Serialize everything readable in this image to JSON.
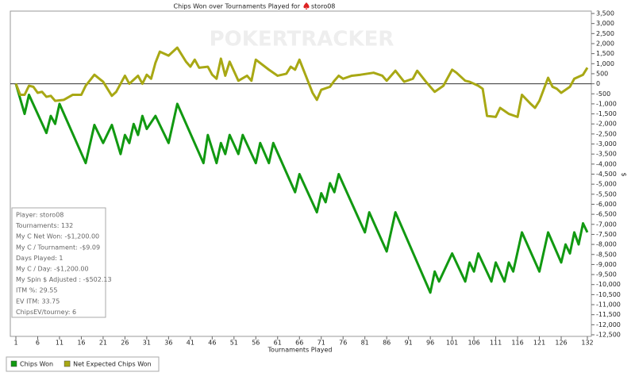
{
  "chart_data": {
    "type": "line",
    "title": "Chips Won over Tournaments Played for",
    "player": "storo08",
    "watermark": "POKERTRACKER",
    "xlabel": "Tournaments Played",
    "y2label": "$",
    "xlim": [
      1,
      132
    ],
    "xticks": [
      1,
      6,
      11,
      16,
      21,
      26,
      31,
      36,
      41,
      46,
      51,
      56,
      61,
      66,
      71,
      76,
      81,
      86,
      91,
      96,
      101,
      106,
      111,
      116,
      121,
      126,
      132
    ],
    "y2lim": [
      -12500,
      3500
    ],
    "y2ticks": [
      {
        "value": 3500,
        "label": "3,500"
      },
      {
        "value": 3000,
        "label": "3,000"
      },
      {
        "value": 2500,
        "label": "2,500"
      },
      {
        "value": 2000,
        "label": "2,000"
      },
      {
        "value": 1500,
        "label": "1,500"
      },
      {
        "value": 1000,
        "label": "1,000"
      },
      500,
      0,
      -500,
      {
        "value": -1000,
        "label": "-1,000"
      },
      {
        "value": -1500,
        "label": "-1,500"
      },
      {
        "value": -2000,
        "label": "-2,000"
      },
      {
        "value": -2500,
        "label": "-2,500"
      },
      {
        "value": -3000,
        "label": "-3,000"
      },
      {
        "value": -3500,
        "label": "-3,500"
      },
      {
        "value": -4000,
        "label": "-4,000"
      },
      {
        "value": -4500,
        "label": "-4,500"
      },
      {
        "value": -5000,
        "label": "-5,000"
      },
      {
        "value": -5500,
        "label": "-5,500"
      },
      {
        "value": -6000,
        "label": "-6,000"
      },
      {
        "value": -6500,
        "label": "-6,500"
      },
      {
        "value": -7000,
        "label": "-7,000"
      },
      {
        "value": -7500,
        "label": "-7,500"
      },
      {
        "value": -8000,
        "label": "-8,000"
      },
      {
        "value": -8500,
        "label": "-8,500"
      },
      {
        "value": -9000,
        "label": "-9,000"
      },
      {
        "value": -9500,
        "label": "-9,500"
      },
      {
        "value": -10000,
        "label": "-10,000"
      },
      {
        "value": -10500,
        "label": "-10,500"
      },
      {
        "value": -11000,
        "label": "-11,000"
      },
      {
        "value": -11500,
        "label": "-11,500"
      },
      {
        "value": -12000,
        "label": "-12,000"
      },
      {
        "value": -12500,
        "label": "-12,500"
      }
    ],
    "series": [
      {
        "name": "Chips Won",
        "color": "#119911",
        "axis": "y2",
        "x": [
          1,
          3,
          4,
          8,
          9,
          10,
          11,
          17,
          19,
          21,
          23,
          25,
          26,
          27,
          28,
          29,
          30,
          31,
          33,
          36,
          38,
          44,
          45,
          47,
          48,
          49,
          50,
          52,
          53,
          56,
          57,
          59,
          60,
          65,
          66,
          70,
          71,
          72,
          73,
          74,
          75,
          81,
          82,
          86,
          88,
          96,
          97,
          98,
          101,
          104,
          105,
          106,
          107,
          110,
          111,
          113,
          114,
          115,
          117,
          121,
          123,
          126,
          127,
          128,
          129,
          130,
          131,
          132
        ],
        "values": [
          0,
          -1500,
          -550,
          -2450,
          -1600,
          -2000,
          -1000,
          -3950,
          -2050,
          -2950,
          -2050,
          -3500,
          -2550,
          -2950,
          -2000,
          -2550,
          -1600,
          -2250,
          -1600,
          -2950,
          -1000,
          -3950,
          -2550,
          -3950,
          -2950,
          -3500,
          -2550,
          -3500,
          -2550,
          -3950,
          -2950,
          -3950,
          -2950,
          -5400,
          -4500,
          -6400,
          -5450,
          -5900,
          -4950,
          -5400,
          -4500,
          -7400,
          -6400,
          -8350,
          -6400,
          -10400,
          -9350,
          -9850,
          -8450,
          -9850,
          -8900,
          -9350,
          -8450,
          -9850,
          -8900,
          -9850,
          -8900,
          -9350,
          -7400,
          -9350,
          -7400,
          -8900,
          -8000,
          -8450,
          -7400,
          -8000,
          -6950,
          -7400
        ]
      },
      {
        "name": "Net Expected Chips Won",
        "color": "#a8a814",
        "axis": "y2",
        "x": [
          1,
          2,
          3,
          4,
          5,
          6,
          7,
          8,
          9,
          10,
          12,
          14,
          16,
          17,
          19,
          21,
          23,
          24,
          26,
          27,
          29,
          30,
          31,
          32,
          33,
          34,
          36,
          38,
          40,
          41,
          42,
          43,
          45,
          46,
          47,
          48,
          49,
          50,
          52,
          54,
          55,
          56,
          59,
          61,
          63,
          64,
          65,
          66,
          69,
          70,
          71,
          73,
          74,
          75,
          76,
          78,
          80,
          83,
          85,
          86,
          88,
          90,
          92,
          93,
          95,
          97,
          99,
          101,
          102,
          104,
          105,
          107,
          108,
          109,
          111,
          112,
          114,
          116,
          117,
          119,
          120,
          121,
          123,
          124,
          125,
          126,
          128,
          129,
          131,
          132
        ],
        "values": [
          0,
          -550,
          -550,
          -100,
          -150,
          -450,
          -400,
          -650,
          -600,
          -850,
          -800,
          -550,
          -550,
          -100,
          450,
          100,
          -600,
          -400,
          400,
          0,
          400,
          0,
          450,
          250,
          1050,
          1600,
          1400,
          1800,
          1100,
          850,
          1200,
          800,
          850,
          450,
          250,
          1250,
          400,
          1100,
          150,
          400,
          150,
          1200,
          700,
          400,
          500,
          850,
          700,
          1200,
          -450,
          -800,
          -300,
          -150,
          150,
          400,
          250,
          400,
          450,
          550,
          400,
          150,
          650,
          100,
          250,
          650,
          100,
          -400,
          -100,
          700,
          550,
          150,
          100,
          -100,
          -250,
          -1600,
          -1650,
          -1200,
          -1500,
          -1650,
          -550,
          -1000,
          -1200,
          -850,
          300,
          -150,
          -250,
          -450,
          -150,
          250,
          450,
          800
        ]
      }
    ],
    "info_box": [
      "Player: storo08",
      "Tournaments: 132",
      "My C Net Won: -$1,200.00",
      "My C / Tournament: -$9.09",
      "Days Played: 1",
      "My C / Day: -$1,200.00",
      "My Spin $ Adjusted : -$502.13",
      "ITM %: 29.55",
      "EV ITM: 33.75",
      "ChipsEV/tourney: 6"
    ]
  }
}
